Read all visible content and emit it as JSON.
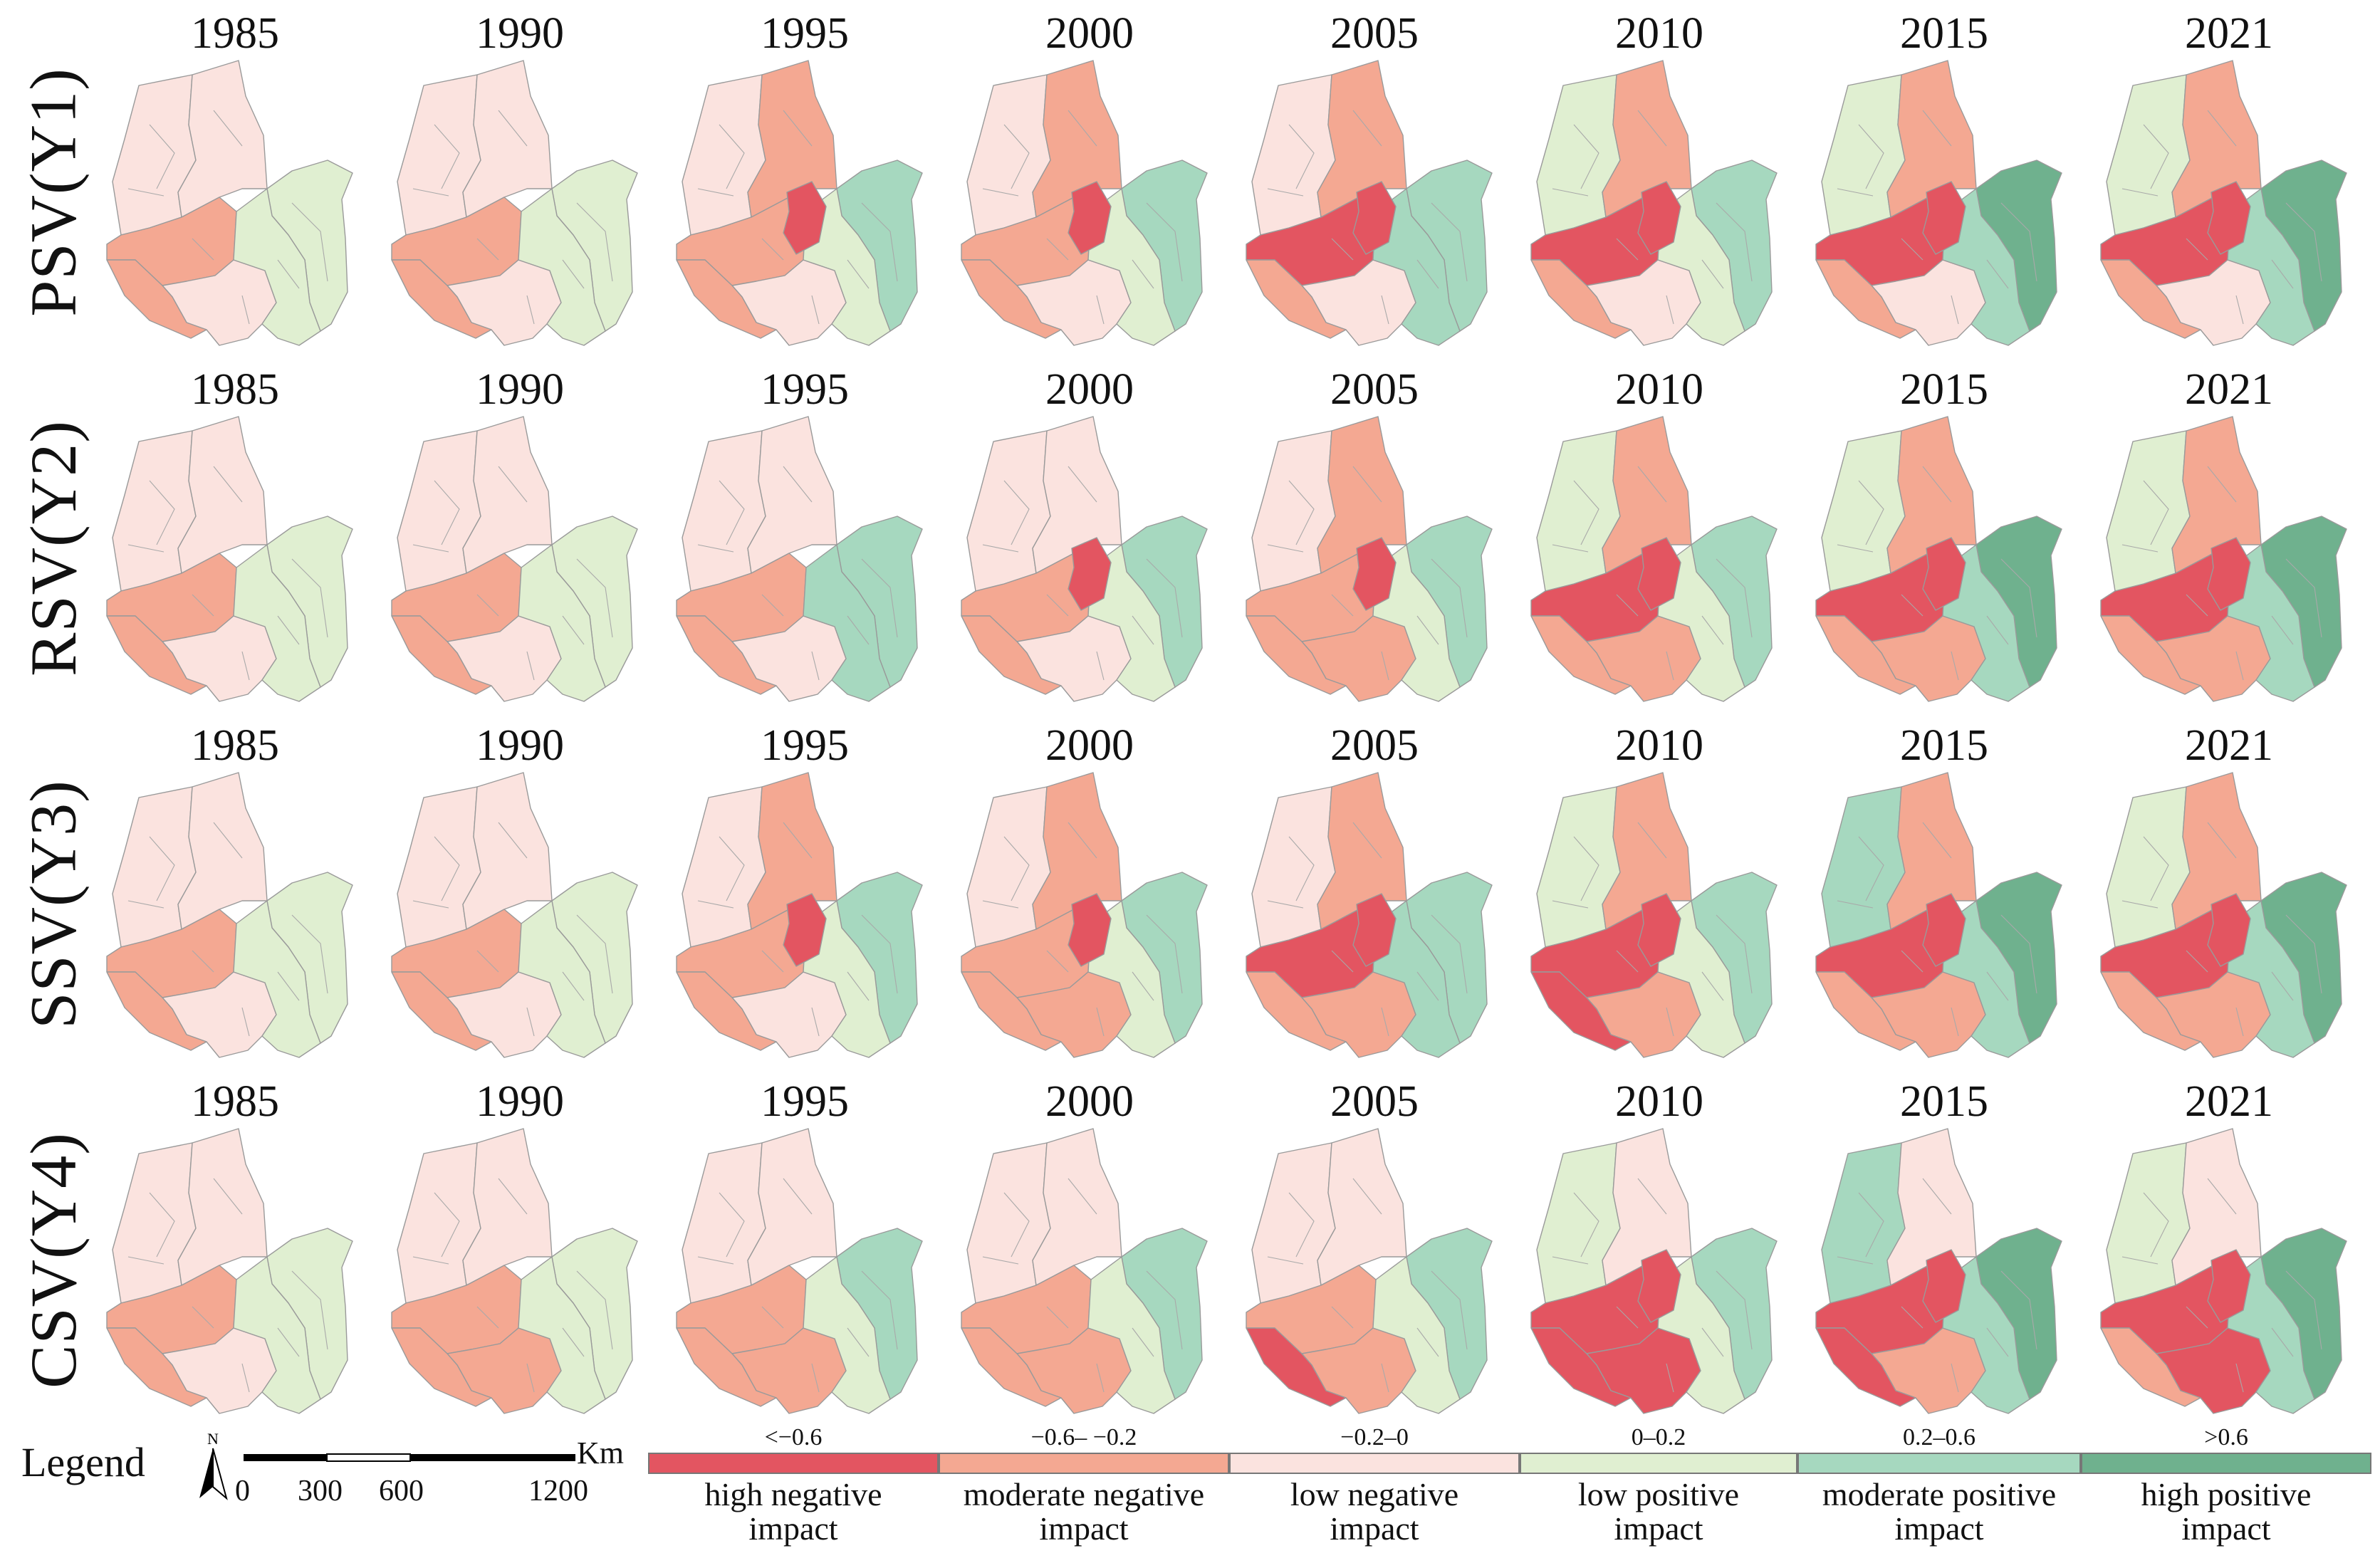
{
  "years": [
    "1985",
    "1990",
    "1995",
    "2000",
    "2005",
    "2010",
    "2015",
    "2021"
  ],
  "rows": [
    {
      "label": "PSV(Y1)",
      "maps": [
        [
          "low_neg",
          "low_neg",
          "low_pos",
          "mod_neg",
          "low_neg",
          "low_pos",
          "mod_neg"
        ],
        [
          "low_neg",
          "low_neg",
          "low_pos",
          "mod_neg",
          "low_neg",
          "low_pos",
          "mod_neg"
        ],
        [
          "low_neg",
          "mod_neg",
          "mod_pos",
          "mod_neg",
          "low_neg",
          "low_pos",
          "mod_neg"
        ],
        [
          "low_neg",
          "mod_neg",
          "mod_pos",
          "mod_neg",
          "low_neg",
          "low_pos",
          "mod_neg"
        ],
        [
          "low_neg",
          "mod_neg",
          "mod_pos",
          "high_neg",
          "low_neg",
          "mod_pos",
          "mod_neg"
        ],
        [
          "low_pos",
          "mod_neg",
          "mod_pos",
          "high_neg",
          "low_neg",
          "low_pos",
          "mod_neg"
        ],
        [
          "low_pos",
          "mod_neg",
          "high_pos",
          "high_neg",
          "low_neg",
          "mod_pos",
          "mod_neg"
        ],
        [
          "low_pos",
          "mod_neg",
          "high_pos",
          "high_neg",
          "low_neg",
          "mod_pos",
          "mod_neg"
        ]
      ],
      "core": [
        "none",
        "none",
        "high_neg",
        "high_neg",
        "high_neg",
        "high_neg",
        "high_neg",
        "high_neg"
      ]
    },
    {
      "label": "RSV(Y2)",
      "maps": [
        [
          "low_neg",
          "low_neg",
          "low_pos",
          "mod_neg",
          "low_neg",
          "low_pos",
          "mod_neg"
        ],
        [
          "low_neg",
          "low_neg",
          "low_pos",
          "mod_neg",
          "low_neg",
          "low_pos",
          "mod_neg"
        ],
        [
          "low_neg",
          "low_neg",
          "mod_pos",
          "mod_neg",
          "low_neg",
          "mod_pos",
          "mod_neg"
        ],
        [
          "low_neg",
          "low_neg",
          "mod_pos",
          "mod_neg",
          "low_neg",
          "low_pos",
          "mod_neg"
        ],
        [
          "low_neg",
          "mod_neg",
          "mod_pos",
          "mod_neg",
          "mod_neg",
          "low_pos",
          "mod_neg"
        ],
        [
          "low_pos",
          "mod_neg",
          "mod_pos",
          "high_neg",
          "mod_neg",
          "low_pos",
          "mod_neg"
        ],
        [
          "low_pos",
          "mod_neg",
          "high_pos",
          "high_neg",
          "mod_neg",
          "mod_pos",
          "mod_neg"
        ],
        [
          "low_pos",
          "mod_neg",
          "high_pos",
          "high_neg",
          "mod_neg",
          "mod_pos",
          "mod_neg"
        ]
      ],
      "core": [
        "none",
        "none",
        "none",
        "high_neg",
        "high_neg",
        "high_neg",
        "high_neg",
        "high_neg"
      ]
    },
    {
      "label": "SSV(Y3)",
      "maps": [
        [
          "low_neg",
          "low_neg",
          "low_pos",
          "mod_neg",
          "low_neg",
          "low_pos",
          "mod_neg"
        ],
        [
          "low_neg",
          "low_neg",
          "low_pos",
          "mod_neg",
          "low_neg",
          "low_pos",
          "mod_neg"
        ],
        [
          "low_neg",
          "mod_neg",
          "mod_pos",
          "mod_neg",
          "low_neg",
          "low_pos",
          "mod_neg"
        ],
        [
          "low_neg",
          "mod_neg",
          "mod_pos",
          "mod_neg",
          "mod_neg",
          "low_pos",
          "mod_neg"
        ],
        [
          "low_neg",
          "mod_neg",
          "mod_pos",
          "high_neg",
          "mod_neg",
          "mod_pos",
          "mod_neg"
        ],
        [
          "low_pos",
          "mod_neg",
          "mod_pos",
          "high_neg",
          "mod_neg",
          "low_pos",
          "high_neg"
        ],
        [
          "mod_pos",
          "mod_neg",
          "high_pos",
          "high_neg",
          "mod_neg",
          "mod_pos",
          "mod_neg"
        ],
        [
          "low_pos",
          "mod_neg",
          "high_pos",
          "high_neg",
          "mod_neg",
          "mod_pos",
          "mod_neg"
        ]
      ],
      "core": [
        "none",
        "none",
        "high_neg",
        "high_neg",
        "high_neg",
        "high_neg",
        "high_neg",
        "high_neg"
      ]
    },
    {
      "label": "CSV(Y4)",
      "maps": [
        [
          "low_neg",
          "low_neg",
          "low_pos",
          "mod_neg",
          "low_neg",
          "low_pos",
          "mod_neg"
        ],
        [
          "low_neg",
          "low_neg",
          "low_pos",
          "mod_neg",
          "mod_neg",
          "low_pos",
          "mod_neg"
        ],
        [
          "low_neg",
          "low_neg",
          "mod_pos",
          "mod_neg",
          "mod_neg",
          "low_pos",
          "mod_neg"
        ],
        [
          "low_neg",
          "low_neg",
          "mod_pos",
          "mod_neg",
          "mod_neg",
          "low_pos",
          "mod_neg"
        ],
        [
          "low_neg",
          "low_neg",
          "mod_pos",
          "mod_neg",
          "mod_neg",
          "low_pos",
          "high_neg"
        ],
        [
          "low_pos",
          "low_neg",
          "mod_pos",
          "high_neg",
          "high_neg",
          "low_pos",
          "high_neg"
        ],
        [
          "mod_pos",
          "low_neg",
          "high_pos",
          "high_neg",
          "mod_neg",
          "mod_pos",
          "high_neg"
        ],
        [
          "low_pos",
          "low_neg",
          "high_pos",
          "high_neg",
          "high_neg",
          "mod_pos",
          "mod_neg"
        ]
      ],
      "core": [
        "none",
        "none",
        "none",
        "none",
        "none",
        "high_neg",
        "high_neg",
        "high_neg"
      ]
    }
  ],
  "legend": {
    "title": "Legend",
    "north": "N",
    "scale_unit": "Km",
    "scale_ticks": [
      "0",
      "300",
      "600",
      "1200"
    ],
    "classes": [
      {
        "key": "high_neg",
        "range": "<−0.6",
        "line1": "high negative",
        "line2": "impact",
        "color": "#e35561"
      },
      {
        "key": "mod_neg",
        "range": "−0.6– −0.2",
        "line1": "moderate negative",
        "line2": "impact",
        "color": "#f4a892"
      },
      {
        "key": "low_neg",
        "range": "−0.2–0",
        "line1": "low negative",
        "line2": "impact",
        "color": "#fbe3df"
      },
      {
        "key": "low_pos",
        "range": "0–0.2",
        "line1": "low positive",
        "line2": "impact",
        "color": "#e0efd1"
      },
      {
        "key": "mod_pos",
        "range": "0.2–0.6",
        "line1": "moderate positive",
        "line2": "impact",
        "color": "#a6d8bf"
      },
      {
        "key": "high_pos",
        "range": ">0.6",
        "line1": "high positive",
        "line2": "impact",
        "color": "#6fb18e"
      }
    ]
  }
}
